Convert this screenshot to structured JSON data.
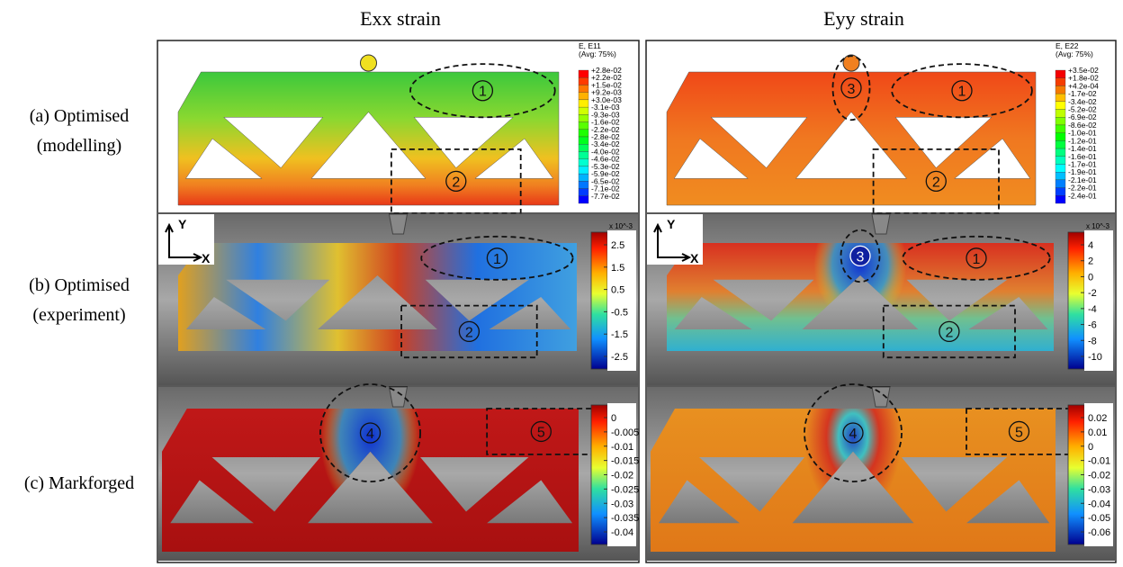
{
  "column_titles": [
    "Exx strain",
    "Eyy strain"
  ],
  "row_labels": [
    [
      "(a) Optimised",
      "(modelling)"
    ],
    [
      "(b) Optimised",
      "(experiment)"
    ],
    [
      "(c) Markforged"
    ]
  ],
  "axis_labels": {
    "y": "Y",
    "x": "X"
  },
  "panels": [
    {
      "colorbar": {
        "header": [
          "E, E11",
          "(Avg: 75%)"
        ],
        "labels": [
          "+2.8e-02",
          "+2.2e-02",
          "+1.5e-02",
          "+9.2e-03",
          "+3.0e-03",
          "-3.1e-03",
          "-9.3e-03",
          "-1.6e-02",
          "-2.2e-02",
          "-2.8e-02",
          "-3.4e-02",
          "-4.0e-02",
          "-4.6e-02",
          "-5.3e-02",
          "-5.9e-02",
          "-6.5e-02",
          "-7.1e-02",
          "-7.7e-02"
        ]
      },
      "markers": [
        "1",
        "2"
      ]
    },
    {
      "colorbar": {
        "header": [
          "E, E22",
          "(Avg: 75%)"
        ],
        "labels": [
          "+3.5e-02",
          "+1.8e-02",
          "+4.2e-04",
          "-1.7e-02",
          "-3.4e-02",
          "-5.2e-02",
          "-6.9e-02",
          "-8.6e-02",
          "-1.0e-01",
          "-1.2e-01",
          "-1.4e-01",
          "-1.6e-01",
          "-1.7e-01",
          "-1.9e-01",
          "-2.1e-01",
          "-2.2e-01",
          "-2.4e-01"
        ]
      },
      "markers": [
        "3",
        "1",
        "2"
      ]
    },
    {
      "colorbar": {
        "header": [
          "x 10^-3"
        ],
        "labels": [
          "2.5",
          "1.5",
          "0.5",
          "-0.5",
          "-1.5",
          "-2.5"
        ]
      },
      "markers": [
        "1",
        "2"
      ]
    },
    {
      "colorbar": {
        "header": [
          "x 10^-3"
        ],
        "labels": [
          "4",
          "2",
          "0",
          "-2",
          "-4",
          "-6",
          "-8",
          "-10"
        ]
      },
      "markers": [
        "3",
        "1",
        "2"
      ]
    },
    {
      "colorbar": {
        "header": [],
        "labels": [
          "0",
          "-0.005",
          "-0.01",
          "-0.015",
          "-0.02",
          "-0.025",
          "-0.03",
          "-0.035",
          "-0.04"
        ]
      },
      "markers": [
        "4",
        "5"
      ]
    },
    {
      "colorbar": {
        "header": [],
        "labels": [
          "0.02",
          "0.01",
          "0",
          "-0.01",
          "-0.02",
          "-0.03",
          "-0.04",
          "-0.05",
          "-0.06"
        ]
      },
      "markers": [
        "4",
        "5"
      ]
    }
  ]
}
